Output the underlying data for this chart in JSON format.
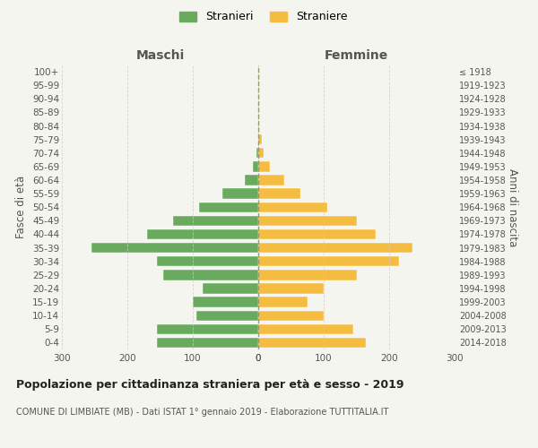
{
  "age_groups": [
    "100+",
    "95-99",
    "90-94",
    "85-89",
    "80-84",
    "75-79",
    "70-74",
    "65-69",
    "60-64",
    "55-59",
    "50-54",
    "45-49",
    "40-44",
    "35-39",
    "30-34",
    "25-29",
    "20-24",
    "15-19",
    "10-14",
    "5-9",
    "0-4"
  ],
  "birth_years": [
    "≤ 1918",
    "1919-1923",
    "1924-1928",
    "1929-1933",
    "1934-1938",
    "1939-1943",
    "1944-1948",
    "1949-1953",
    "1954-1958",
    "1959-1963",
    "1964-1968",
    "1969-1973",
    "1974-1978",
    "1979-1983",
    "1984-1988",
    "1989-1993",
    "1994-1998",
    "1999-2003",
    "2004-2008",
    "2009-2013",
    "2014-2018"
  ],
  "males": [
    0,
    0,
    0,
    0,
    0,
    0,
    3,
    8,
    20,
    55,
    90,
    130,
    170,
    255,
    155,
    145,
    85,
    100,
    95,
    155,
    155
  ],
  "females": [
    0,
    0,
    0,
    0,
    0,
    5,
    8,
    18,
    40,
    65,
    105,
    150,
    180,
    235,
    215,
    150,
    100,
    75,
    100,
    145,
    165
  ],
  "male_color": "#6aaa5e",
  "female_color": "#f5bc42",
  "center_line_color": "#999966",
  "grid_color": "#cccccc",
  "bg_color": "#f5f5f0",
  "title": "Popolazione per cittadinanza straniera per età e sesso - 2019",
  "subtitle": "COMUNE DI LIMBIATE (MB) - Dati ISTAT 1° gennaio 2019 - Elaborazione TUTTITALIA.IT",
  "ylabel_left": "Fasce di età",
  "ylabel_right": "Anni di nascita",
  "xlabel_left": "Maschi",
  "xlabel_right": "Femmine",
  "legend_male": "Stranieri",
  "legend_female": "Straniere",
  "xlim": 300
}
